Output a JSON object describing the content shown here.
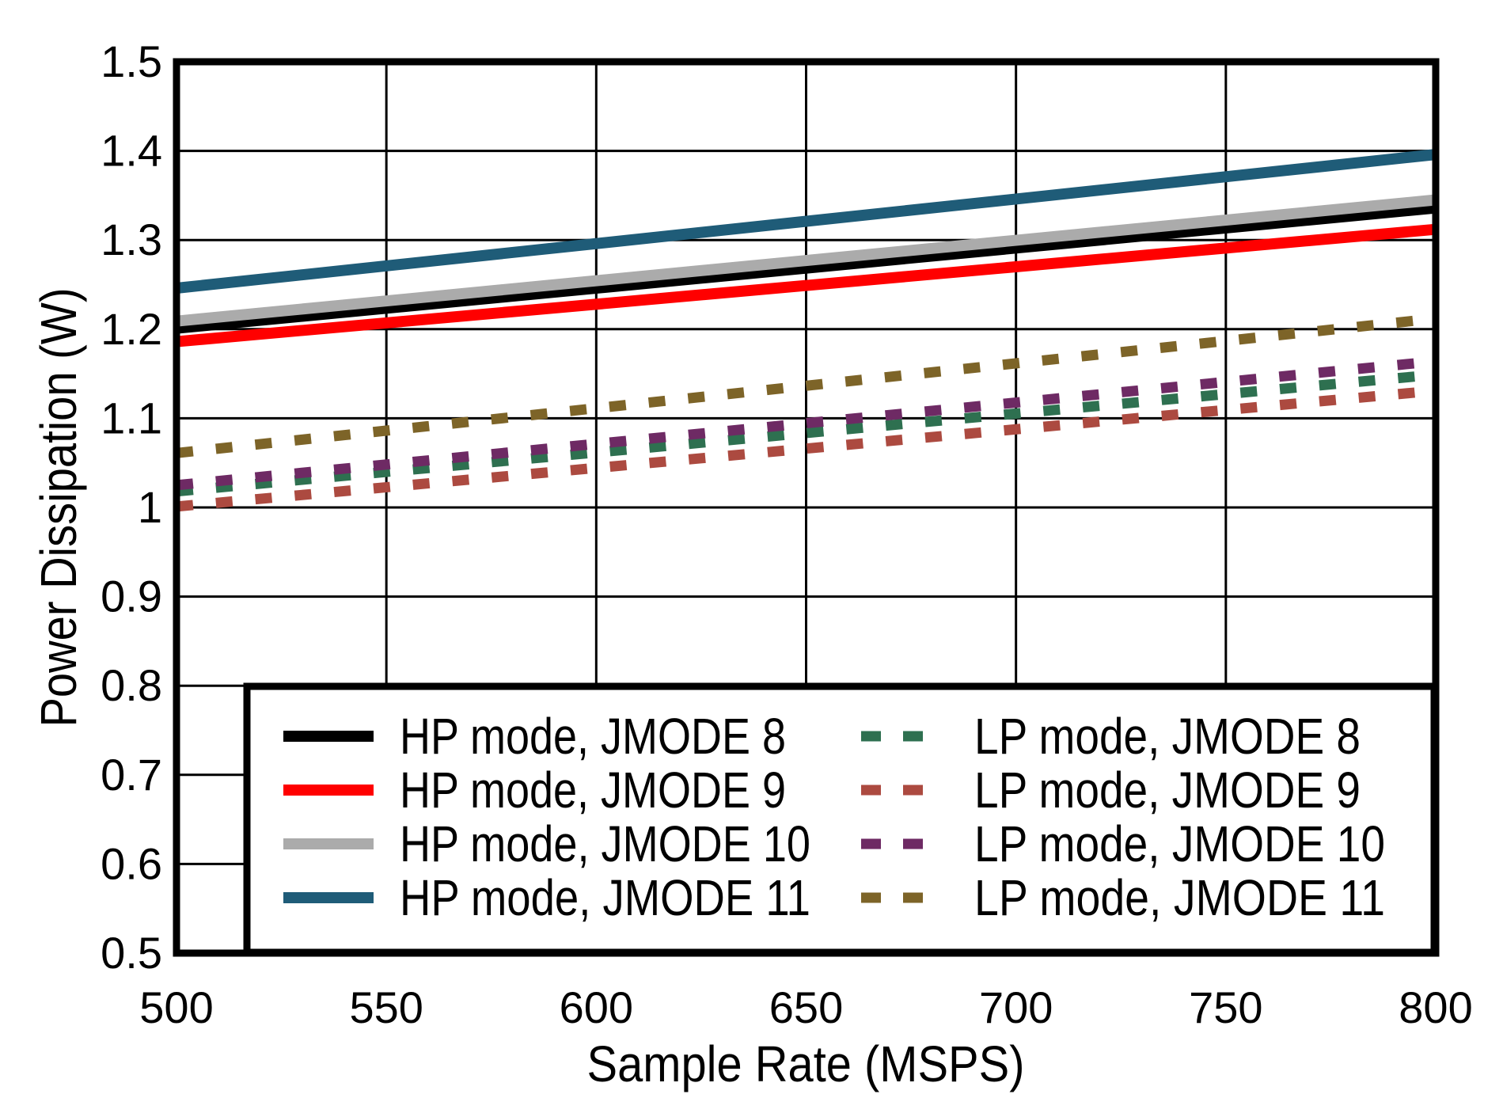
{
  "chart_data": {
    "type": "line",
    "title": "",
    "xlabel": "Sample Rate (MSPS)",
    "ylabel": "Power Dissipation (W)",
    "xlim": [
      500,
      800
    ],
    "ylim": [
      0.5,
      1.5
    ],
    "xticks": [
      500,
      550,
      600,
      650,
      700,
      750,
      800
    ],
    "xtick_labels": [
      "500",
      "550",
      "600",
      "650",
      "700",
      "750",
      "800"
    ],
    "yticks": [
      0.5,
      0.6,
      0.7,
      0.8,
      0.9,
      1.0,
      1.1,
      1.2,
      1.3,
      1.4,
      1.5
    ],
    "ytick_labels": [
      "0.5",
      "0.6",
      "0.7",
      "0.8",
      "0.9",
      "1",
      "1.1",
      "1.2",
      "1.3",
      "1.4",
      "1.5"
    ],
    "grid": true,
    "legend_position": "inside-bottom, two columns, boxed",
    "axis_color": "#000000",
    "grid_color": "#000000",
    "background_color": "#ffffff",
    "series": [
      {
        "name": "HP mode, JMODE 8",
        "color": "#000000",
        "style": "solid",
        "x": [
          500,
          800
        ],
        "y": [
          1.201,
          1.336
        ]
      },
      {
        "name": "HP mode, JMODE 9",
        "color": "#FF0000",
        "style": "solid",
        "x": [
          500,
          800
        ],
        "y": [
          1.186,
          1.312
        ]
      },
      {
        "name": "HP mode, JMODE 10",
        "color": "#ABABAB",
        "style": "solid",
        "x": [
          500,
          800
        ],
        "y": [
          1.209,
          1.345
        ]
      },
      {
        "name": "HP mode, JMODE 11",
        "color": "#1F5C78",
        "style": "solid",
        "x": [
          500,
          800
        ],
        "y": [
          1.246,
          1.396
        ]
      },
      {
        "name": "LP mode, JMODE 8",
        "color": "#2E7050",
        "style": "dashed",
        "x": [
          500,
          800
        ],
        "y": [
          1.018,
          1.149
        ]
      },
      {
        "name": "LP mode, JMODE 9",
        "color": "#AC4A40",
        "style": "dashed",
        "x": [
          500,
          800
        ],
        "y": [
          1.001,
          1.131
        ]
      },
      {
        "name": "LP mode, JMODE 10",
        "color": "#6E2A64",
        "style": "dashed",
        "x": [
          500,
          800
        ],
        "y": [
          1.025,
          1.164
        ]
      },
      {
        "name": "LP mode, JMODE 11",
        "color": "#7D6428",
        "style": "dashed",
        "x": [
          500,
          800
        ],
        "y": [
          1.061,
          1.212
        ]
      }
    ],
    "legend_columns": [
      [
        "HP mode, JMODE 8",
        "HP mode, JMODE 9",
        "HP mode, JMODE 10",
        "HP mode, JMODE 11"
      ],
      [
        "LP mode, JMODE 8",
        "LP mode, JMODE 9",
        "LP mode, JMODE 10",
        "LP mode, JMODE 11"
      ]
    ]
  }
}
